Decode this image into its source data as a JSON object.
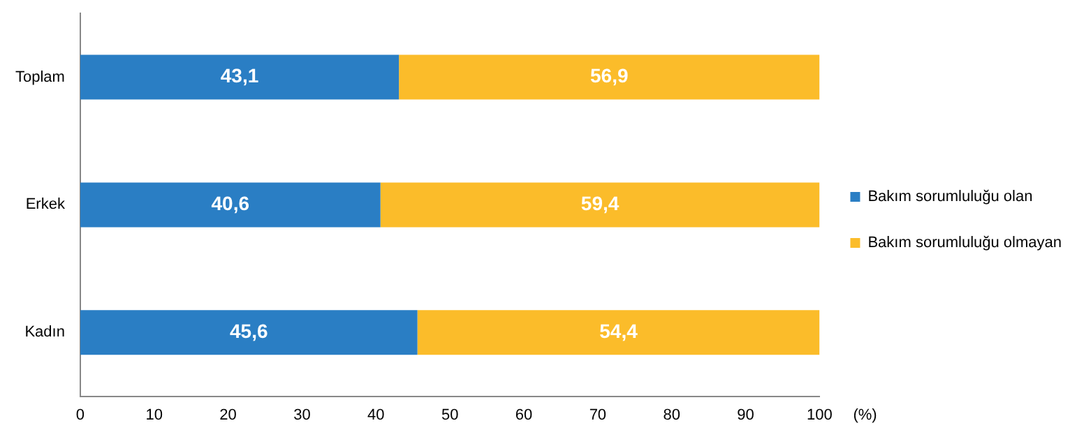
{
  "chart_data": {
    "type": "bar",
    "orientation": "horizontal",
    "stacked": true,
    "categories": [
      "Toplam",
      "Erkek",
      "Kadın"
    ],
    "series": [
      {
        "name": "Bakım sorumluluğu olan",
        "color": "#2a7ec4",
        "values": [
          43.1,
          40.6,
          45.6
        ],
        "value_labels": [
          "43,1",
          "40,6",
          "45,6"
        ]
      },
      {
        "name": "Bakım sorumluluğu olmayan",
        "color": "#fbbc2a",
        "values": [
          56.9,
          59.4,
          54.4
        ],
        "value_labels": [
          "56,9",
          "59,4",
          "54,4"
        ]
      }
    ],
    "xlim": [
      0,
      100
    ],
    "xticks": [
      0,
      10,
      20,
      30,
      40,
      50,
      60,
      70,
      80,
      90,
      100
    ],
    "xlabel": "(%)",
    "grid": false,
    "legend": "right"
  }
}
